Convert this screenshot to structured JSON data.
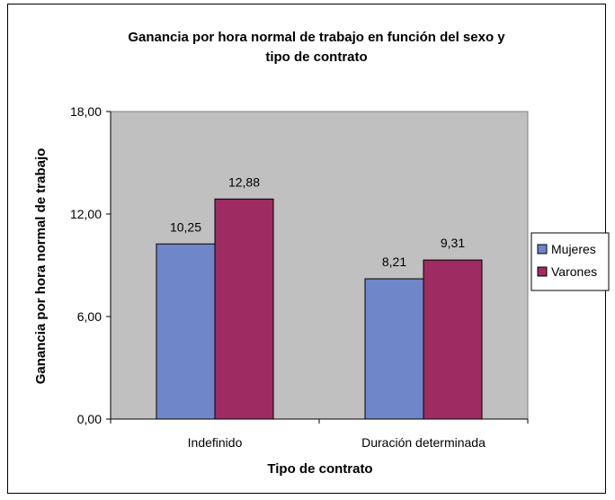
{
  "chart_data": {
    "type": "bar",
    "title_line1": "Ganancia por hora normal de trabajo en función del sexo y",
    "title_line2": "tipo de contrato",
    "xlabel": "Tipo de contrato",
    "ylabel": "Ganancia por hora normal de trabajo",
    "categories": [
      "Indefinido",
      "Duración determinada"
    ],
    "series": [
      {
        "name": "Mujeres",
        "values": [
          10.25,
          8.21
        ],
        "labels": [
          "10,25",
          "8,21"
        ],
        "color": "#6f86c8"
      },
      {
        "name": "Varones",
        "values": [
          12.88,
          9.31
        ],
        "labels": [
          "12,88",
          "9,31"
        ],
        "color": "#9e2c62"
      }
    ],
    "ylim": [
      0,
      18
    ],
    "yticks": [
      0,
      6,
      12,
      18
    ],
    "ytick_labels": [
      "0,00",
      "6,00",
      "12,00",
      "18,00"
    ],
    "plot_background": "#c0c0c0",
    "grid": false,
    "legend_position": "right"
  }
}
